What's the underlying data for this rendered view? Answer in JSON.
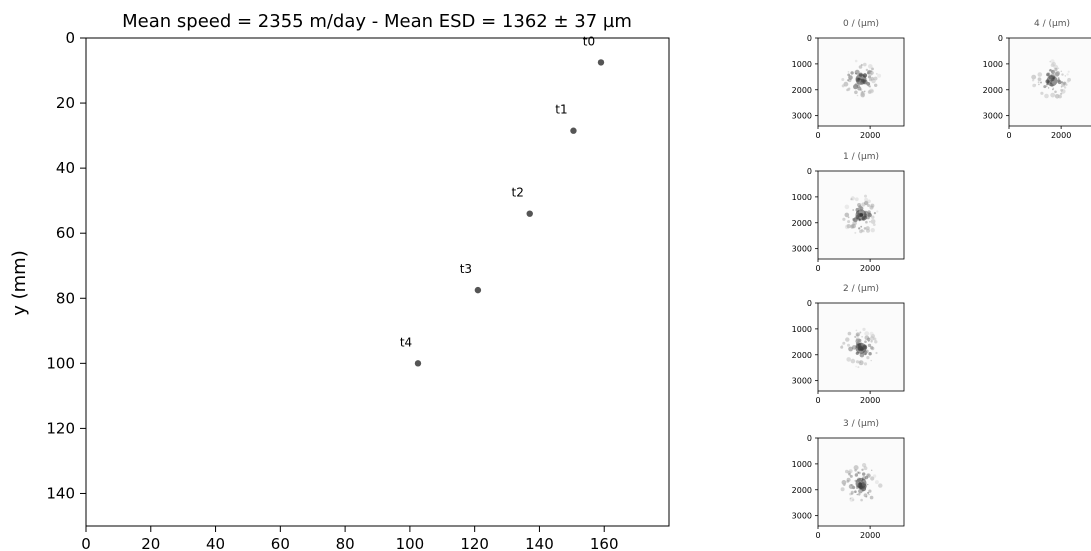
{
  "chart_data": [
    {
      "type": "scatter",
      "title": "Mean speed = 2355 m/day - Mean ESD = 1362 ± 37 µm",
      "xlabel": "",
      "ylabel": "y (mm)",
      "xlim": [
        0,
        180
      ],
      "ylim": [
        150,
        0
      ],
      "y_inverted": true,
      "grid": false,
      "xticks": [
        0,
        20,
        40,
        60,
        80,
        100,
        120,
        140,
        160
      ],
      "yticks": [
        0,
        20,
        40,
        60,
        80,
        100,
        120,
        140
      ],
      "point_color": "#555555",
      "points": [
        {
          "label": "t0",
          "x": 159,
          "y": 7.5
        },
        {
          "label": "t1",
          "x": 150.5,
          "y": 28.5
        },
        {
          "label": "t2",
          "x": 137,
          "y": 54
        },
        {
          "label": "t3",
          "x": 121,
          "y": 77.5
        },
        {
          "label": "t4",
          "x": 102.5,
          "y": 100
        }
      ]
    },
    {
      "type": "heatmap",
      "title": "0 / (µm)",
      "xticks": [
        0,
        2000
      ],
      "yticks": [
        0,
        1000,
        2000,
        3000
      ],
      "xlim": [
        0,
        3300
      ],
      "ylim": [
        3400,
        0
      ],
      "colormap": "Greys",
      "blob": {
        "cx": 1650,
        "cy": 1600,
        "esd": 1362
      }
    },
    {
      "type": "heatmap",
      "title": "1 / (µm)",
      "xticks": [
        0,
        2000
      ],
      "yticks": [
        0,
        1000,
        2000,
        3000
      ],
      "xlim": [
        0,
        3300
      ],
      "ylim": [
        3400,
        0
      ],
      "colormap": "Greys",
      "blob": {
        "cx": 1650,
        "cy": 1700,
        "esd": 1362
      }
    },
    {
      "type": "heatmap",
      "title": "2 / (µm)",
      "xticks": [
        0,
        2000
      ],
      "yticks": [
        0,
        1000,
        2000,
        3000
      ],
      "xlim": [
        0,
        3300
      ],
      "ylim": [
        3400,
        0
      ],
      "colormap": "Greys",
      "blob": {
        "cx": 1650,
        "cy": 1750,
        "esd": 1362
      }
    },
    {
      "type": "heatmap",
      "title": "3 / (µm)",
      "xticks": [
        0,
        2000
      ],
      "yticks": [
        0,
        1000,
        2000,
        3000
      ],
      "xlim": [
        0,
        3300
      ],
      "ylim": [
        3400,
        0
      ],
      "colormap": "Greys",
      "blob": {
        "cx": 1650,
        "cy": 1750,
        "esd": 1362
      }
    },
    {
      "type": "heatmap",
      "title": "4 / (µm)",
      "xticks": [
        0,
        2000
      ],
      "yticks": [
        0,
        1000,
        2000,
        3000
      ],
      "xlim": [
        0,
        3300
      ],
      "ylim": [
        3400,
        0
      ],
      "colormap": "Greys",
      "blob": {
        "cx": 1650,
        "cy": 1650,
        "esd": 1362
      }
    }
  ]
}
